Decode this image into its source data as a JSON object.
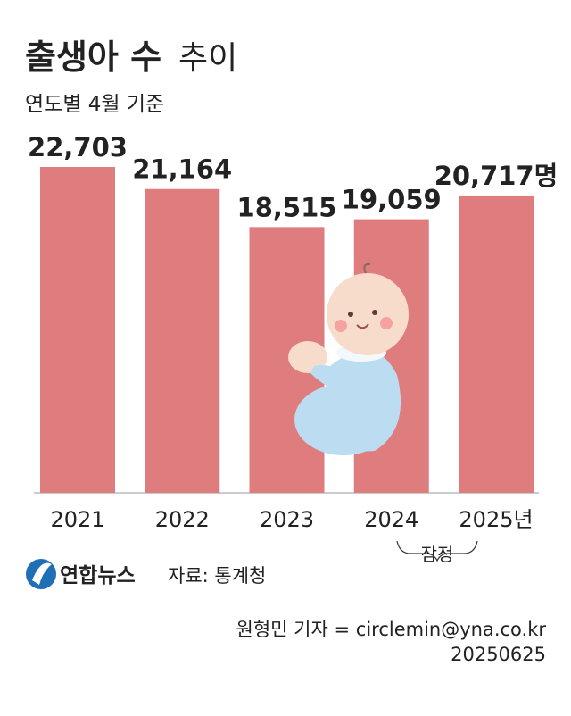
{
  "chart_data": {
    "type": "bar",
    "title": "출생아 수",
    "title_light": "추이",
    "subtitle": "연도별 4월 기준",
    "categories": [
      "2021",
      "2022",
      "2023",
      "2024",
      "2025년"
    ],
    "values": [
      22703,
      21164,
      18515,
      19059,
      20717
    ],
    "value_labels": [
      "22,703",
      "21,164",
      "18,515",
      "19,059",
      "20,717명"
    ],
    "color": "#df7c7e",
    "annotation": "잠정",
    "logo": "연합뉴스",
    "source": "자료: 통계청",
    "credit": "원형민 기자 = circlemin@yna.co.kr",
    "date": "20250625"
  }
}
